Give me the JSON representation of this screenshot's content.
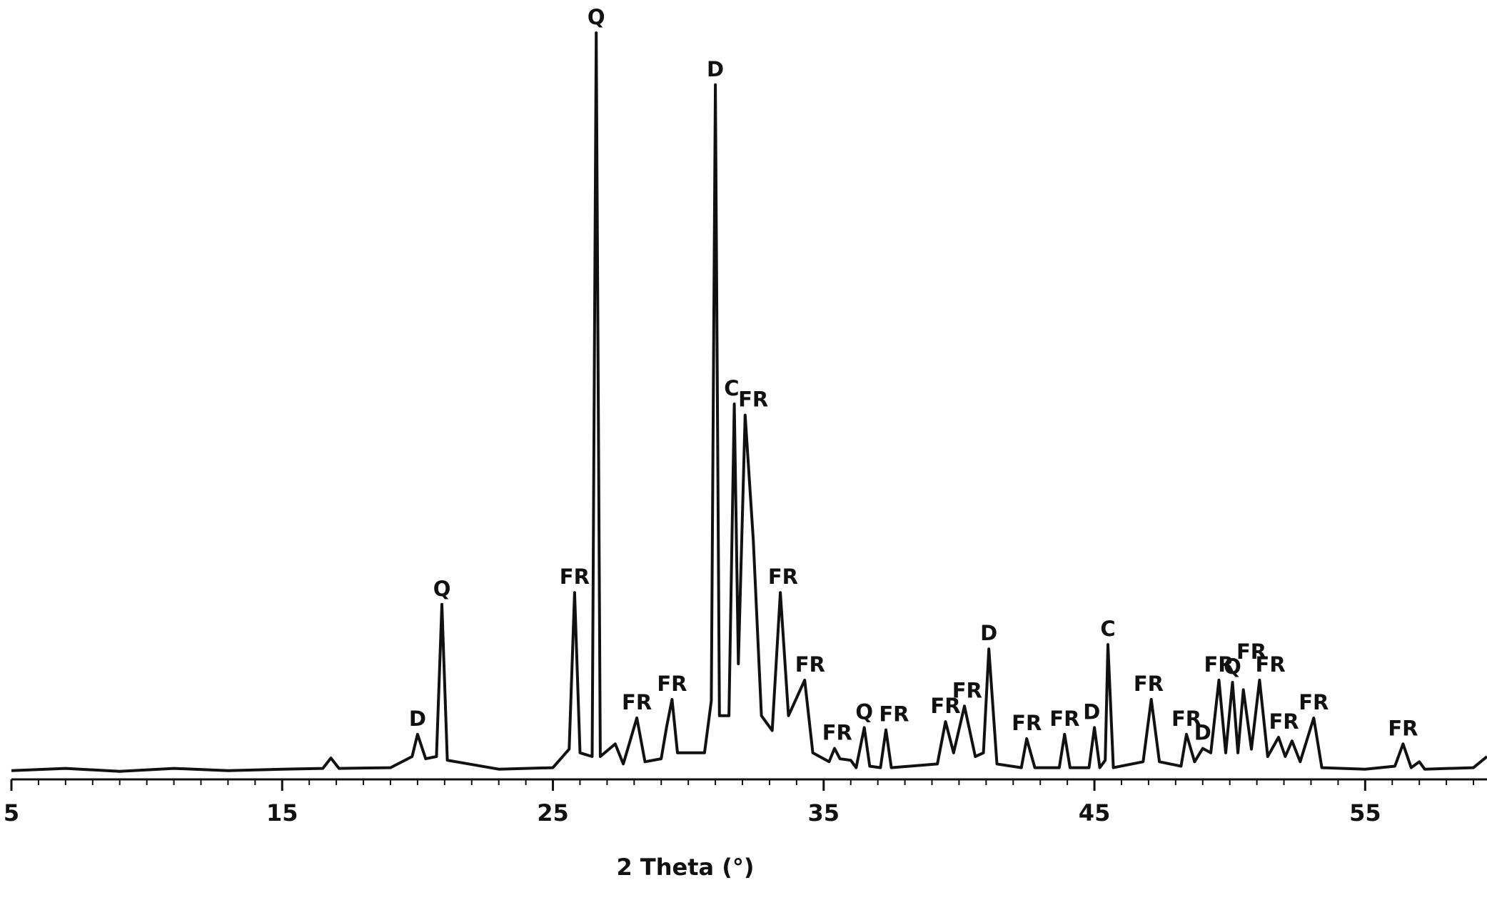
{
  "chart_data": {
    "type": "line",
    "xlabel": "2 Theta (°)",
    "color": "#111111",
    "xlim": [
      5,
      59.5
    ],
    "ylim": [
      0,
      100
    ],
    "xticks": [
      5,
      15,
      25,
      35,
      45,
      55
    ],
    "xminorticks": [
      6,
      7,
      8,
      9,
      10,
      11,
      12,
      13,
      14,
      16,
      17,
      18,
      19,
      20,
      21,
      22,
      23,
      24,
      26,
      27,
      28,
      29,
      30,
      31,
      32,
      33,
      34,
      36,
      37,
      38,
      39,
      40,
      41,
      42,
      43,
      44,
      46,
      47,
      48,
      49,
      50,
      51,
      52,
      53,
      54,
      56,
      57,
      58,
      59
    ],
    "x": [
      5,
      7,
      9,
      11,
      13,
      15,
      16.5,
      16.8,
      17.1,
      19.0,
      19.8,
      20.0,
      20.3,
      20.7,
      20.9,
      21.1,
      23,
      25.0,
      25.6,
      25.8,
      26.0,
      26.45,
      26.6,
      26.75,
      27.3,
      27.6,
      28.1,
      28.4,
      29.0,
      29.2,
      29.4,
      29.6,
      30.6,
      30.85,
      31.0,
      31.15,
      31.5,
      31.7,
      31.85,
      32.1,
      32.4,
      32.7,
      33.1,
      33.4,
      33.7,
      34.3,
      34.6,
      35.2,
      35.4,
      35.6,
      36.0,
      36.2,
      36.5,
      36.7,
      37.1,
      37.3,
      37.5,
      39.2,
      39.5,
      39.8,
      40.2,
      40.6,
      40.9,
      41.1,
      41.4,
      42.3,
      42.5,
      42.8,
      43.7,
      43.9,
      44.1,
      44.8,
      45.0,
      45.2,
      45.4,
      45.5,
      45.7,
      46.8,
      47.1,
      47.4,
      48.2,
      48.4,
      48.7,
      49.0,
      49.3,
      49.6,
      49.85,
      50.1,
      50.3,
      50.5,
      50.8,
      51.1,
      51.4,
      51.8,
      52.05,
      52.3,
      52.6,
      53.1,
      53.4,
      55,
      56.1,
      56.4,
      56.7,
      57.0,
      57.2,
      59,
      59.5
    ],
    "values": [
      0.6,
      0.9,
      0.5,
      0.9,
      0.6,
      0.8,
      0.9,
      2.3,
      0.9,
      1.0,
      2.5,
      5.5,
      2.2,
      2.5,
      23,
      2.0,
      0.8,
      1.0,
      3.5,
      24.6,
      3.0,
      2.5,
      100,
      2.5,
      4.2,
      1.5,
      7.7,
      1.8,
      2.2,
      6.5,
      10.2,
      3.0,
      3.0,
      10,
      93,
      8,
      8,
      50,
      15,
      48.5,
      31.7,
      8,
      6,
      24.6,
      8,
      12.8,
      3,
      1.8,
      3.6,
      2.2,
      2.0,
      1.0,
      6.4,
      1.2,
      1.0,
      6.1,
      1.0,
      1.5,
      7.2,
      3.0,
      9.3,
      2.5,
      3.0,
      17,
      1.5,
      1.0,
      4.9,
      1.0,
      1.0,
      5.5,
      1.0,
      1.0,
      6.4,
      1.0,
      2,
      17.6,
      1.0,
      1.8,
      10.2,
      1.8,
      1.2,
      5.5,
      1.8,
      3.6,
      3.0,
      12.8,
      3,
      12.5,
      3,
      11.5,
      3.5,
      12.8,
      2.5,
      5.1,
      2.5,
      4.6,
      1.8,
      7.7,
      1.0,
      0.8,
      1.2,
      4.2,
      1.0,
      1.8,
      0.8,
      1.0,
      2.5
    ],
    "annotations": [
      {
        "text": "D",
        "x": 20.0,
        "y": 5.5
      },
      {
        "text": "Q",
        "x": 20.9,
        "y": 23
      },
      {
        "text": "FR",
        "x": 25.8,
        "y": 24.6
      },
      {
        "text": "Q",
        "x": 26.6,
        "y": 100
      },
      {
        "text": "FR",
        "x": 28.1,
        "y": 7.7
      },
      {
        "text": "FR",
        "x": 29.4,
        "y": 10.2
      },
      {
        "text": "D",
        "x": 31.0,
        "y": 93
      },
      {
        "text": "C",
        "x": 31.6,
        "y": 50
      },
      {
        "text": "FR",
        "x": 32.4,
        "y": 48.5
      },
      {
        "text": "FR",
        "x": 33.5,
        "y": 24.6
      },
      {
        "text": "FR",
        "x": 34.5,
        "y": 12.8
      },
      {
        "text": "FR",
        "x": 35.5,
        "y": 3.6
      },
      {
        "text": "Q",
        "x": 36.5,
        "y": 6.4
      },
      {
        "text": "FR",
        "x": 37.6,
        "y": 6.1
      },
      {
        "text": "FR",
        "x": 39.5,
        "y": 7.2
      },
      {
        "text": "FR",
        "x": 40.3,
        "y": 9.3
      },
      {
        "text": "D",
        "x": 41.1,
        "y": 17
      },
      {
        "text": "FR",
        "x": 42.5,
        "y": 4.9
      },
      {
        "text": "FR",
        "x": 43.9,
        "y": 5.5
      },
      {
        "text": "D",
        "x": 44.9,
        "y": 6.4
      },
      {
        "text": "C",
        "x": 45.5,
        "y": 17.6
      },
      {
        "text": "FR",
        "x": 47.0,
        "y": 10.2
      },
      {
        "text": "FR",
        "x": 48.4,
        "y": 5.5
      },
      {
        "text": "D",
        "x": 49.0,
        "y": 3.6
      },
      {
        "text": "FR",
        "x": 49.6,
        "y": 12.8
      },
      {
        "text": "Q",
        "x": 50.1,
        "y": 12.5
      },
      {
        "text": "FR",
        "x": 50.8,
        "y": 14.5
      },
      {
        "text": "FR",
        "x": 51.5,
        "y": 12.8
      },
      {
        "text": "FR",
        "x": 52.0,
        "y": 5.1
      },
      {
        "text": "FR",
        "x": 53.1,
        "y": 7.7
      },
      {
        "text": "FR",
        "x": 56.4,
        "y": 4.2
      }
    ]
  }
}
